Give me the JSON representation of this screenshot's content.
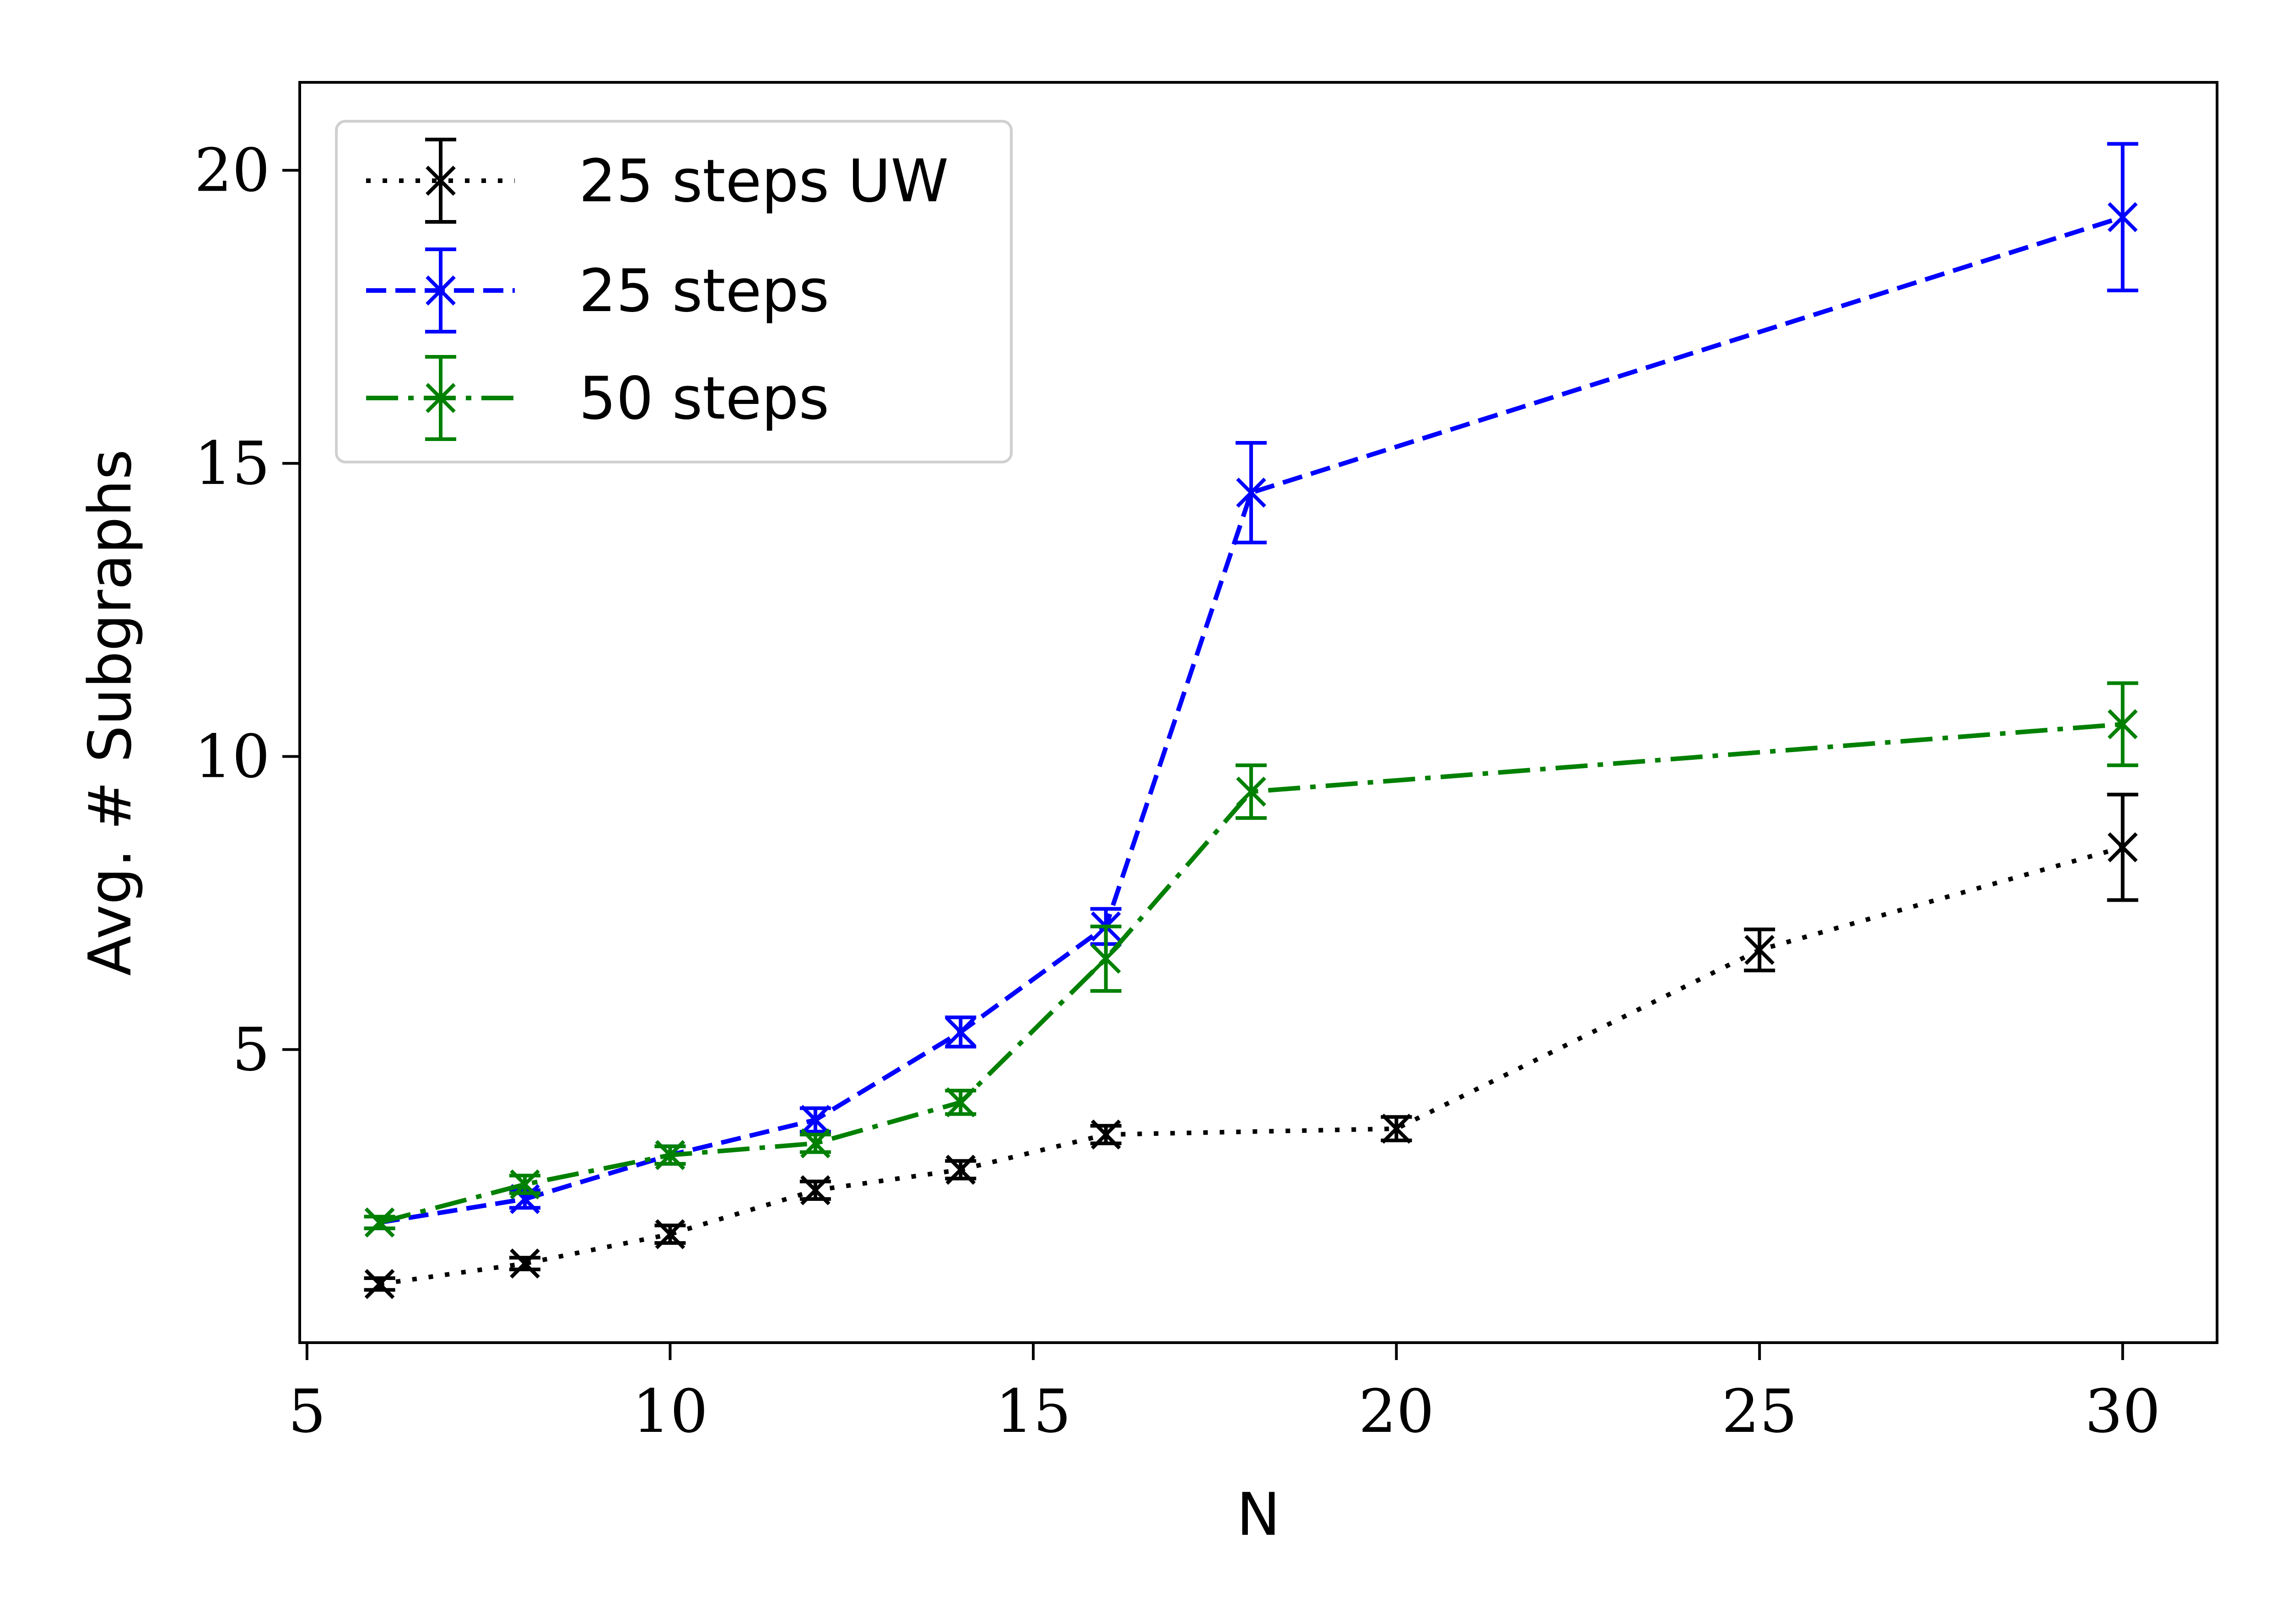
{
  "chart_data": {
    "type": "line",
    "title": "",
    "xlabel": "N",
    "ylabel": "Avg. # Subgraphs",
    "xlim": [
      4.9,
      31.3
    ],
    "ylim": [
      0.0,
      21.5
    ],
    "xticks": [
      5,
      10,
      15,
      20,
      25,
      30
    ],
    "yticks": [
      5,
      10,
      15,
      20
    ],
    "grid": false,
    "legend_position": "top-left",
    "series": [
      {
        "name": "25 steps UW",
        "color": "#000000",
        "linestyle": "dotted",
        "marker": "x",
        "x": [
          6,
          8,
          10,
          12,
          14,
          16,
          20,
          25,
          30
        ],
        "y": [
          1.0,
          1.35,
          1.85,
          2.6,
          2.95,
          3.55,
          3.65,
          6.7,
          8.45
        ],
        "err": [
          0.1,
          0.1,
          0.15,
          0.15,
          0.15,
          0.15,
          0.2,
          0.35,
          0.9
        ]
      },
      {
        "name": "25 steps",
        "color": "#0000ff",
        "linestyle": "dashed",
        "marker": "x",
        "x": [
          6,
          8,
          10,
          12,
          14,
          16,
          18,
          30
        ],
        "y": [
          2.05,
          2.45,
          3.2,
          3.8,
          5.3,
          7.1,
          14.5,
          19.2
        ],
        "err": [
          0.1,
          0.15,
          0.15,
          0.2,
          0.25,
          0.3,
          0.85,
          1.25
        ]
      },
      {
        "name": "50 steps",
        "color": "#008000",
        "linestyle": "dashdot",
        "marker": "x",
        "x": [
          6,
          8,
          10,
          12,
          14,
          16,
          18,
          30
        ],
        "y": [
          2.05,
          2.7,
          3.2,
          3.4,
          4.1,
          6.55,
          9.4,
          10.55
        ],
        "err": [
          0.1,
          0.15,
          0.15,
          0.15,
          0.2,
          0.55,
          0.45,
          0.7
        ]
      }
    ]
  }
}
